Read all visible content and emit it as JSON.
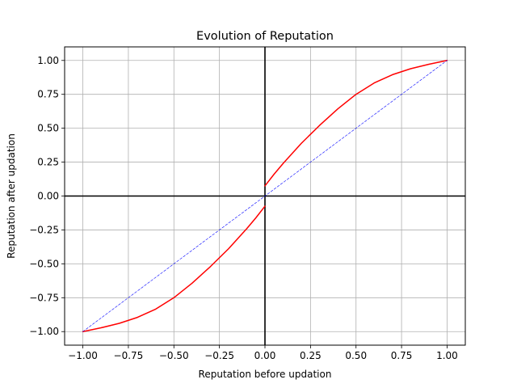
{
  "chart_data": {
    "type": "line",
    "title": "Evolution of Reputation",
    "xlabel": "Reputation before updation",
    "ylabel": "Reputation after updation",
    "xlim": [
      -1.1,
      1.1
    ],
    "ylim": [
      -1.1,
      1.1
    ],
    "grid": true,
    "xticks": [
      -1.0,
      -0.75,
      -0.5,
      -0.25,
      0.0,
      0.25,
      0.5,
      0.75,
      1.0
    ],
    "yticks": [
      -1.0,
      -0.75,
      -0.5,
      -0.25,
      0.0,
      0.25,
      0.5,
      0.75,
      1.0
    ],
    "xtick_labels": [
      "−1.00",
      "−0.75",
      "−0.50",
      "−0.25",
      "0.00",
      "0.25",
      "0.50",
      "0.75",
      "1.00"
    ],
    "ytick_labels": [
      "−1.00",
      "−0.75",
      "−0.50",
      "−0.25",
      "0.00",
      "0.25",
      "0.50",
      "0.75",
      "1.00"
    ],
    "reference_lines": [
      {
        "orientation": "horizontal",
        "value": 0,
        "color": "#000000"
      },
      {
        "orientation": "vertical",
        "value": 0,
        "color": "#000000"
      }
    ],
    "series": [
      {
        "color": "#ff0000",
        "style": "solid",
        "segments": [
          {
            "x": [
              -1.0,
              -0.9,
              -0.8,
              -0.7,
              -0.6,
              -0.5,
              -0.4,
              -0.3,
              -0.2,
              -0.1,
              -0.05,
              0.0
            ],
            "y": [
              -1.0,
              -0.972,
              -0.939,
              -0.895,
              -0.834,
              -0.75,
              -0.643,
              -0.521,
              -0.389,
              -0.241,
              -0.161,
              -0.075
            ]
          },
          {
            "x": [
              0.0,
              0.05,
              0.1,
              0.2,
              0.3,
              0.4,
              0.5,
              0.6,
              0.7,
              0.8,
              0.9,
              1.0
            ],
            "y": [
              0.075,
              0.161,
              0.241,
              0.389,
              0.521,
              0.643,
              0.75,
              0.834,
              0.895,
              0.939,
              0.972,
              1.0
            ]
          }
        ]
      },
      {
        "color": "#0000ff",
        "style": "dashed",
        "segments": [
          {
            "x": [
              -1.0,
              1.0
            ],
            "y": [
              -1.0,
              1.0
            ]
          }
        ]
      }
    ]
  }
}
